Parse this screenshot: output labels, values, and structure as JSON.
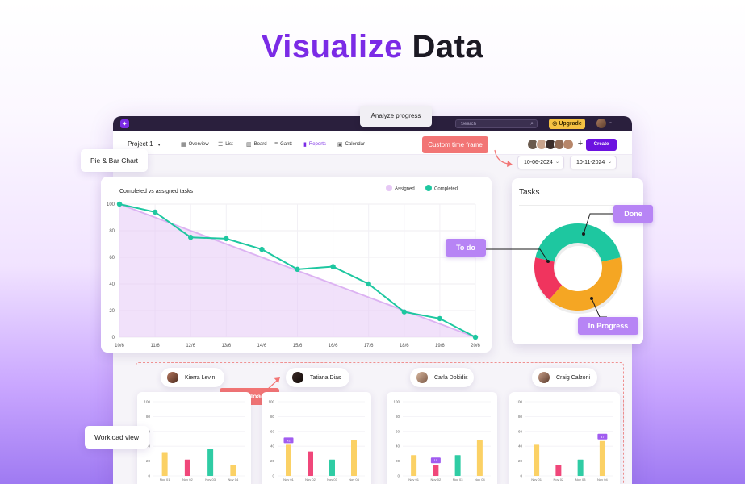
{
  "hero": {
    "title_accent": "Visualize",
    "title_rest": "Data"
  },
  "topbar": {
    "search_placeholder": "Search",
    "upgrade_label": "Upgrade"
  },
  "nav": {
    "project": "Project 1",
    "tabs": [
      {
        "label": "Overview",
        "icon": "overview-icon"
      },
      {
        "label": "List",
        "icon": "list-icon"
      },
      {
        "label": "Board",
        "icon": "board-icon"
      },
      {
        "label": "Gantt",
        "icon": "gantt-icon"
      },
      {
        "label": "Reports",
        "icon": "reports-icon",
        "active": true
      },
      {
        "label": "Calendar",
        "icon": "calendar-icon"
      }
    ],
    "create_label": "Create"
  },
  "callouts": {
    "analyze": "Analyze progress",
    "pie_bar": "Pie & Bar Chart",
    "custom_time": "Custom time frame",
    "done": "Done",
    "todo": "To do",
    "in_progress": "In Progress",
    "workload": "Workload",
    "workload_view": "Workload view"
  },
  "date_range": {
    "start": "10-06-2024",
    "end": "10-11-2024"
  },
  "colors": {
    "accent": "#7b2be6",
    "completed": "#1ec7a0",
    "assigned": "#e6c8f5",
    "todo": "#f0345e",
    "in_progress": "#f5a623",
    "bar_yellow": "#fbd165",
    "bar_pink": "#f0477a",
    "bar_green": "#2fcca4"
  },
  "chart_data": [
    {
      "type": "line",
      "title": "Completed vs assigned tasks",
      "x": [
        "10/6",
        "11/6",
        "12/6",
        "13/6",
        "14/6",
        "15/6",
        "16/6",
        "17/6",
        "18/6",
        "19/6",
        "20/6"
      ],
      "ylim": [
        0,
        100
      ],
      "yticks": [
        0,
        20,
        40,
        60,
        80,
        100
      ],
      "legend_position": "top-right",
      "grid": true,
      "series": [
        {
          "name": "Assigned",
          "values": [
            100,
            90,
            80,
            70,
            60,
            50,
            40,
            30,
            20,
            10,
            0
          ]
        },
        {
          "name": "Completed",
          "values": [
            100,
            94,
            75,
            74,
            66,
            51,
            53,
            40,
            19,
            14,
            0
          ]
        }
      ]
    },
    {
      "type": "pie",
      "title": "Tasks",
      "donut": true,
      "categories": [
        "Done",
        "In Progress",
        "To do"
      ],
      "values": [
        43,
        40,
        17
      ]
    },
    {
      "type": "bar",
      "title": "Kierra Levin",
      "categories": [
        "Nov 01",
        "Nov 02",
        "Nov 03",
        "Nov 04"
      ],
      "values": [
        32,
        22,
        36,
        15
      ],
      "ylim": [
        0,
        100
      ],
      "yticks": [
        0,
        20,
        40,
        60,
        80,
        100
      ]
    },
    {
      "type": "bar",
      "title": "Tatiana Dias",
      "categories": [
        "Nov 01",
        "Nov 02",
        "Nov 03",
        "Nov 04"
      ],
      "values": [
        42,
        33,
        22,
        48
      ],
      "ylim": [
        0,
        100
      ],
      "yticks": [
        0,
        20,
        40,
        60,
        80,
        100
      ],
      "annotation": {
        "category": "Nov 01",
        "text": "42"
      }
    },
    {
      "type": "bar",
      "title": "Carla Dokidis",
      "categories": [
        "Nov 01",
        "Nov 02",
        "Nov 03",
        "Nov 04"
      ],
      "values": [
        28,
        15,
        28,
        48
      ],
      "ylim": [
        0,
        100
      ],
      "yticks": [
        0,
        20,
        40,
        60,
        80,
        100
      ],
      "annotation": {
        "category": "Nov 02",
        "text": "15"
      }
    },
    {
      "type": "bar",
      "title": "Craig Calzoni",
      "categories": [
        "Nov 01",
        "Nov 02",
        "Nov 03",
        "Nov 04"
      ],
      "values": [
        42,
        15,
        22,
        47
      ],
      "ylim": [
        0,
        100
      ],
      "yticks": [
        0,
        20,
        40,
        60,
        80,
        100
      ],
      "annotation": {
        "category": "Nov 04",
        "text": "47"
      }
    }
  ]
}
